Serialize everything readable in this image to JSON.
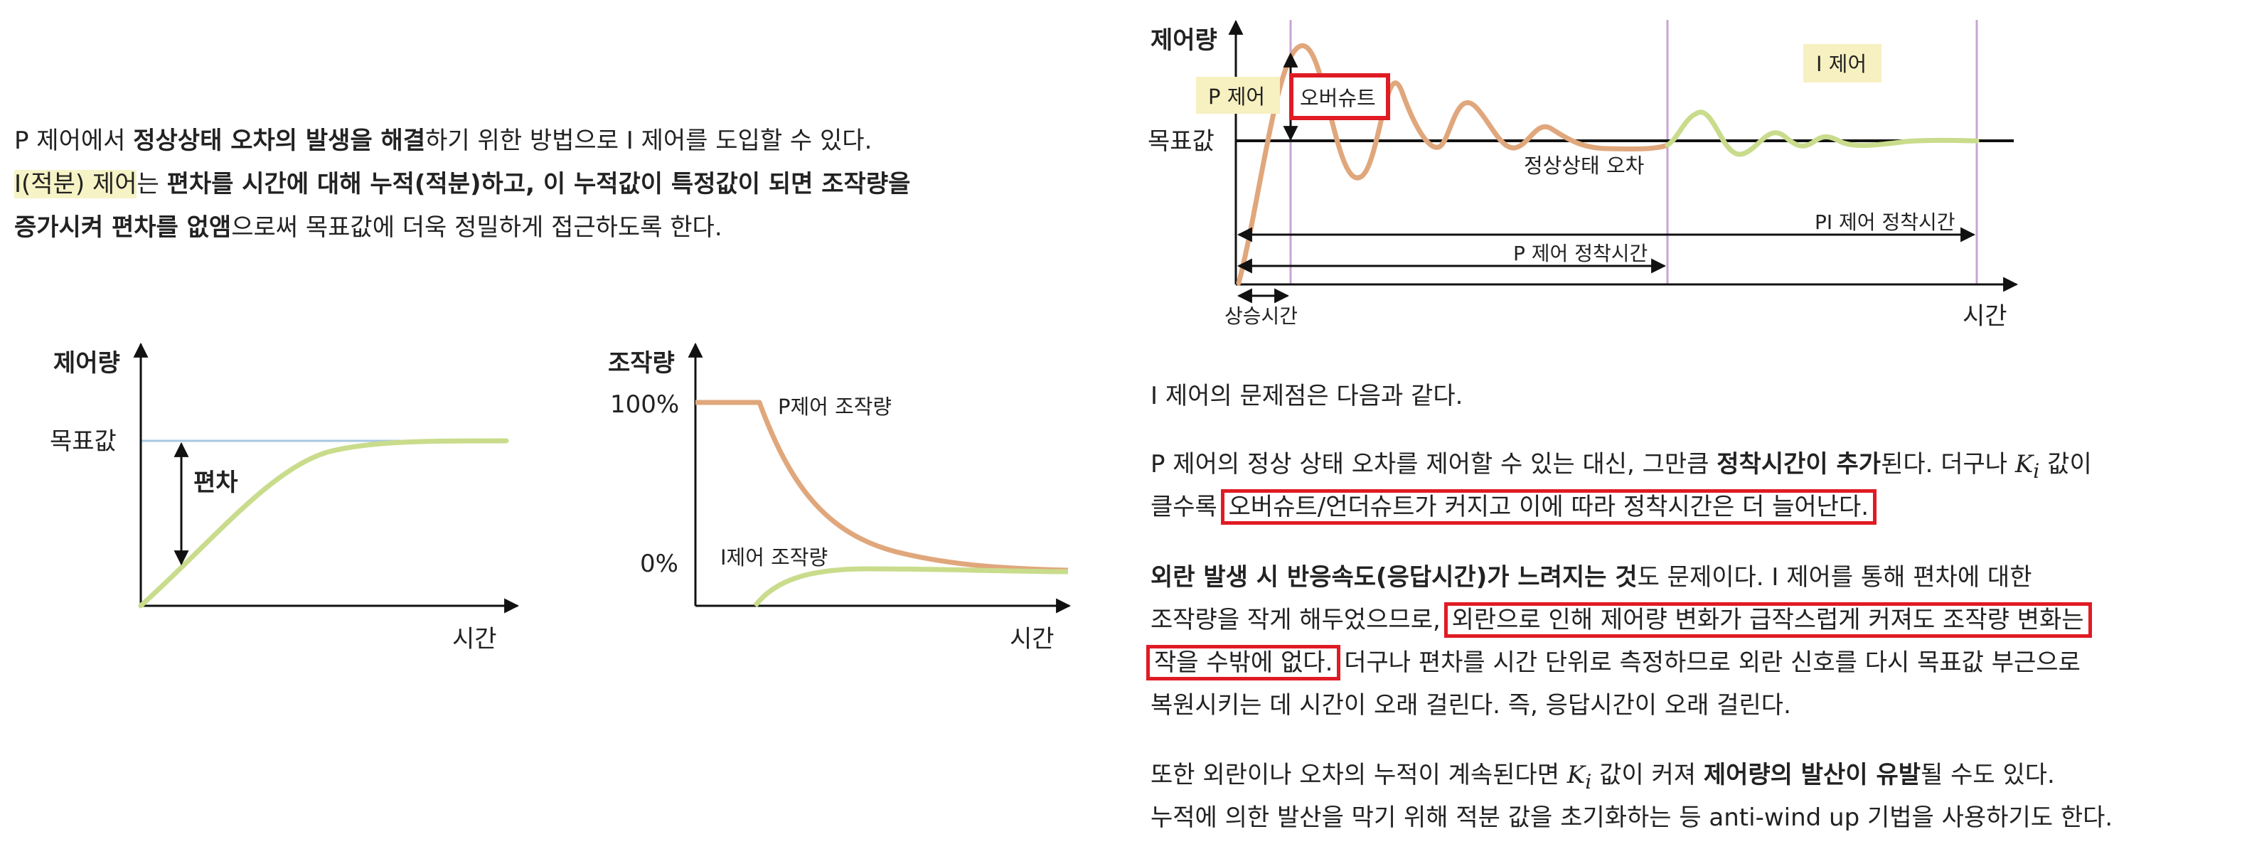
{
  "intro": {
    "line1": {
      "pre": "P 제어에서 ",
      "bold": "정상상태 오차의 발생을 해결",
      "post": "하기 위한 방법으로 I 제어를 도입할 수 있다."
    },
    "line2": {
      "hl": "I(적분) 제어",
      "mid": "는 ",
      "bold": "편차를 시간에 대해 누적(적분)하고, 이 누적값이 특정값이 되면 조작량을"
    },
    "line3": {
      "bold": "증가시켜 편차를 없앰",
      "post": "으로써 목표값에 더욱 정밀하게 접근하도록 한다."
    }
  },
  "chart_left": {
    "ylabel": "제어량",
    "target_label": "목표값",
    "deviation_label": "편차",
    "xlabel": "시간"
  },
  "chart_mid": {
    "ylabel": "조작량",
    "tick_100": "100%",
    "tick_0": "0%",
    "p_label": "P제어 조작량",
    "i_label": "I제어 조작량",
    "xlabel": "시간"
  },
  "chart_right": {
    "ylabel": "제어량",
    "target_label": "목표값",
    "p_control_label": "P 제어",
    "overshoot_label": "오버슈트",
    "i_control_label": "I 제어",
    "steady_error_label": "정상상태 오차",
    "pi_settle_label": "PI 제어 정착시간",
    "p_settle_label": "P 제어 정착시간",
    "rise_time_label": "상승시간",
    "xlabel": "시간"
  },
  "colors": {
    "p_curve": "#e0a77c",
    "i_curve": "#c9dc8c",
    "target_line": "#a8c8e0",
    "marker_line": "#c9a5d3",
    "label_bg": "#f7f0c0",
    "red_box": "#e01b24"
  },
  "right_text": {
    "p1": "I 제어의 문제점은 다음과 같다.",
    "p2": {
      "pre": "P 제어의 정상 상태 오차를 제어할 수 있는 대신, 그만큼 ",
      "bold": "정착시간이 추가",
      "post": "된다. 더구나 ",
      "k_sym": "K",
      "k_sub": "i",
      "post2": " 값이",
      "line2_pre": "클수록 ",
      "line2_box": "오버슈트/언더슈트가 커지고 이에 따라 정착시간은 더 늘어난다."
    },
    "p3": {
      "bold": "외란 발생 시 반응속도(응답시간)가 느려지는 것",
      "post": "도 문제이다. I 제어를 통해 편차에 대한",
      "line2_pre": "조작량을 작게 해두었으므로, ",
      "line2_box": "외란으로 인해 제어량 변화가 급작스럽게 커져도 조작량 변화는",
      "line3_box": "작을 수밖에 없다.",
      "line3_post": " 더구나 편차를 시간 단위로 측정하므로 외란 신호를 다시 목표값 부근으로",
      "line4": "복원시키는 데 시간이 오래 걸린다. 즉, 응답시간이 오래 걸린다."
    },
    "p4": {
      "pre": "또한 외란이나 오차의 누적이 계속된다면 ",
      "k_sym": "K",
      "k_sub": "i",
      "mid": " 값이 커져 ",
      "bold": "제어량의 발산이 유발",
      "post": "될 수도 있다.",
      "line2": "누적에 의한 발산을 막기 위해 적분 값을 초기화하는 등 anti-wind up 기법을 사용하기도 한다."
    }
  }
}
